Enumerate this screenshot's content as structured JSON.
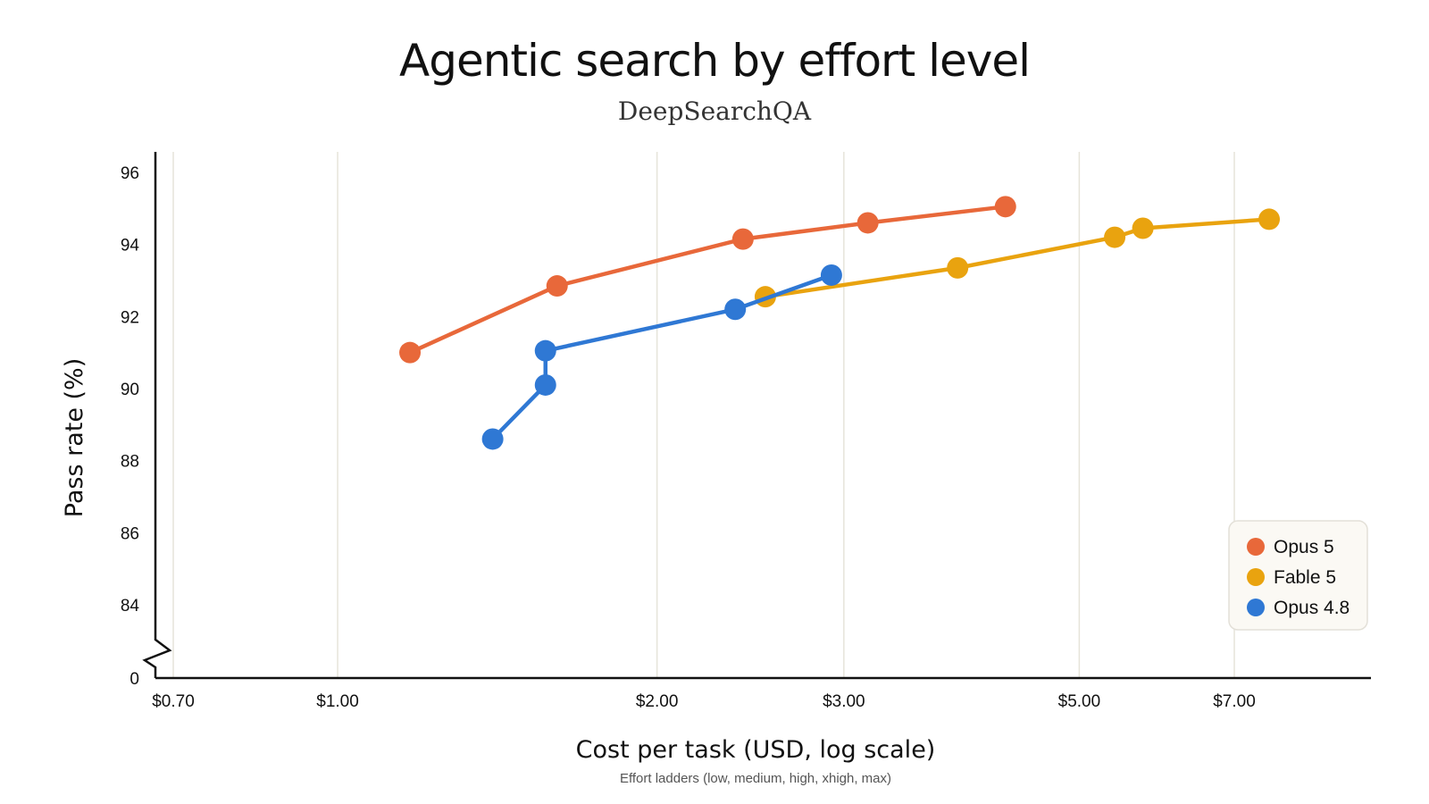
{
  "chart_data": {
    "type": "line",
    "title": "Agentic search by effort level",
    "subtitle": "DeepSearchQA",
    "xlabel": "Cost per task (USD, log scale)",
    "x_caption": "Effort ladders (low, medium, high, xhigh, max)",
    "ylabel": "Pass rate (%)",
    "x_scale": "log",
    "xlim": [
      0.7,
      10.0
    ],
    "ylim": [
      83,
      96.5
    ],
    "y_break": true,
    "x_ticks": [
      {
        "value": 0.7,
        "label": "$0.70"
      },
      {
        "value": 1.0,
        "label": "$1.00"
      },
      {
        "value": 2.0,
        "label": "$2.00"
      },
      {
        "value": 3.0,
        "label": "$3.00"
      },
      {
        "value": 5.0,
        "label": "$5.00"
      },
      {
        "value": 7.0,
        "label": "$7.00"
      }
    ],
    "y_ticks": [
      84,
      86,
      88,
      90,
      92,
      94,
      96
    ],
    "y_break_label": "0",
    "grid": "vertical",
    "legend_position": "bottom-right",
    "series": [
      {
        "name": "Opus 5",
        "color": "#e8683a",
        "x": [
          1.17,
          1.61,
          2.41,
          3.16,
          4.26
        ],
        "y": [
          91.0,
          92.85,
          94.15,
          94.6,
          95.05
        ]
      },
      {
        "name": "Fable 5",
        "color": "#e9a30f",
        "x": [
          2.53,
          3.84,
          5.4,
          5.74,
          7.55
        ],
        "y": [
          92.55,
          93.35,
          94.2,
          94.45,
          94.7
        ]
      },
      {
        "name": "Opus 4.8",
        "color": "#2f78d4",
        "x": [
          1.4,
          1.57,
          1.57,
          2.37,
          2.92
        ],
        "y": [
          88.6,
          90.1,
          91.05,
          92.2,
          93.15
        ]
      }
    ]
  }
}
